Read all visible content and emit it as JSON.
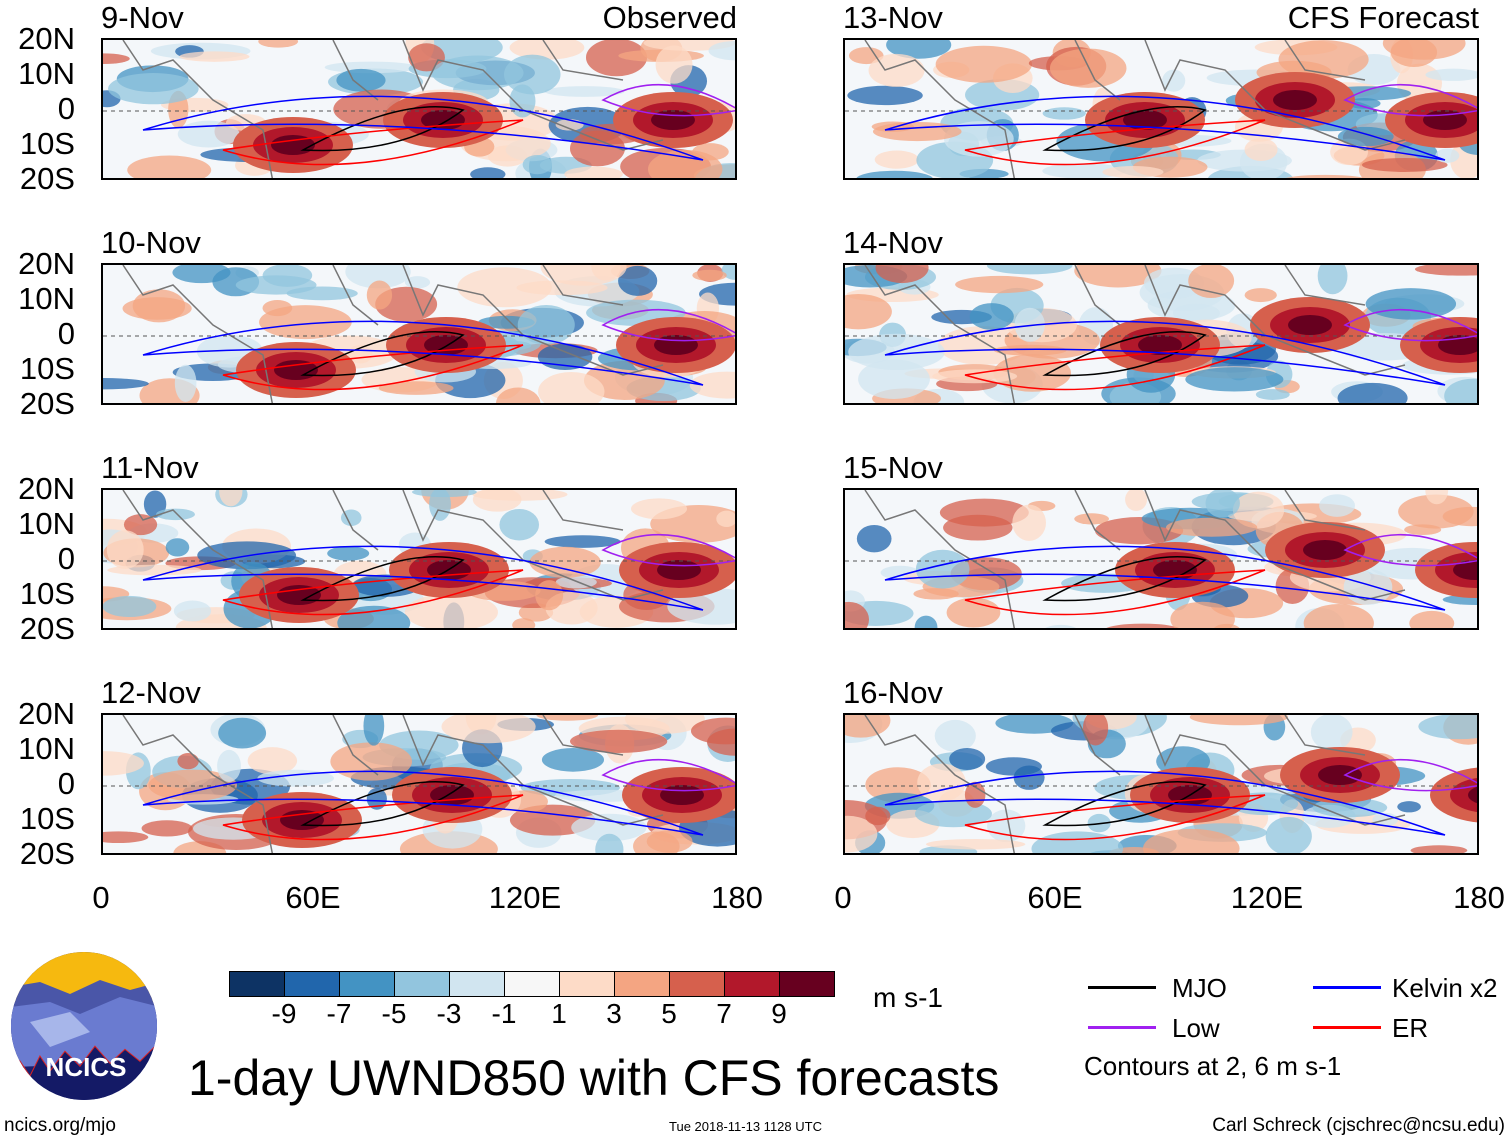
{
  "title": "1-day UWND850 with CFS forecasts",
  "left_column": {
    "label": "Observed",
    "dates": [
      "9-Nov",
      "10-Nov",
      "11-Nov",
      "12-Nov"
    ]
  },
  "right_column": {
    "label": "CFS Forecast",
    "dates": [
      "13-Nov",
      "14-Nov",
      "15-Nov",
      "16-Nov"
    ]
  },
  "lat_ticks": [
    "20N",
    "10N",
    "0",
    "10S",
    "20S"
  ],
  "lon_ticks": [
    "0",
    "60E",
    "120E",
    "180"
  ],
  "colorbar": {
    "unit": "m s-1",
    "labels": [
      "-9",
      "-7",
      "-5",
      "-3",
      "-1",
      "1",
      "3",
      "5",
      "7",
      "9"
    ],
    "colors": [
      "#0d3364",
      "#2166ac",
      "#4393c3",
      "#92c5de",
      "#d1e5f0",
      "#f7f7f7",
      "#fddbc7",
      "#f4a582",
      "#d6604d",
      "#b2182b",
      "#67001f"
    ]
  },
  "legend": {
    "items": [
      {
        "label": "MJO",
        "color": "#000000"
      },
      {
        "label": "Kelvin x2",
        "color": "#0000ff"
      },
      {
        "label": "Low",
        "color": "#a020f0"
      },
      {
        "label": "ER",
        "color": "#ff0000"
      }
    ],
    "note": "Contours at 2, 6 m s-1"
  },
  "logo": {
    "text": "NCICS"
  },
  "footer": {
    "url": "ncics.org/mjo",
    "timestamp": "Tue 2018-11-13 1128 UTC",
    "credit": "Carl Schreck (cjschrec@ncsu.edu)"
  }
}
